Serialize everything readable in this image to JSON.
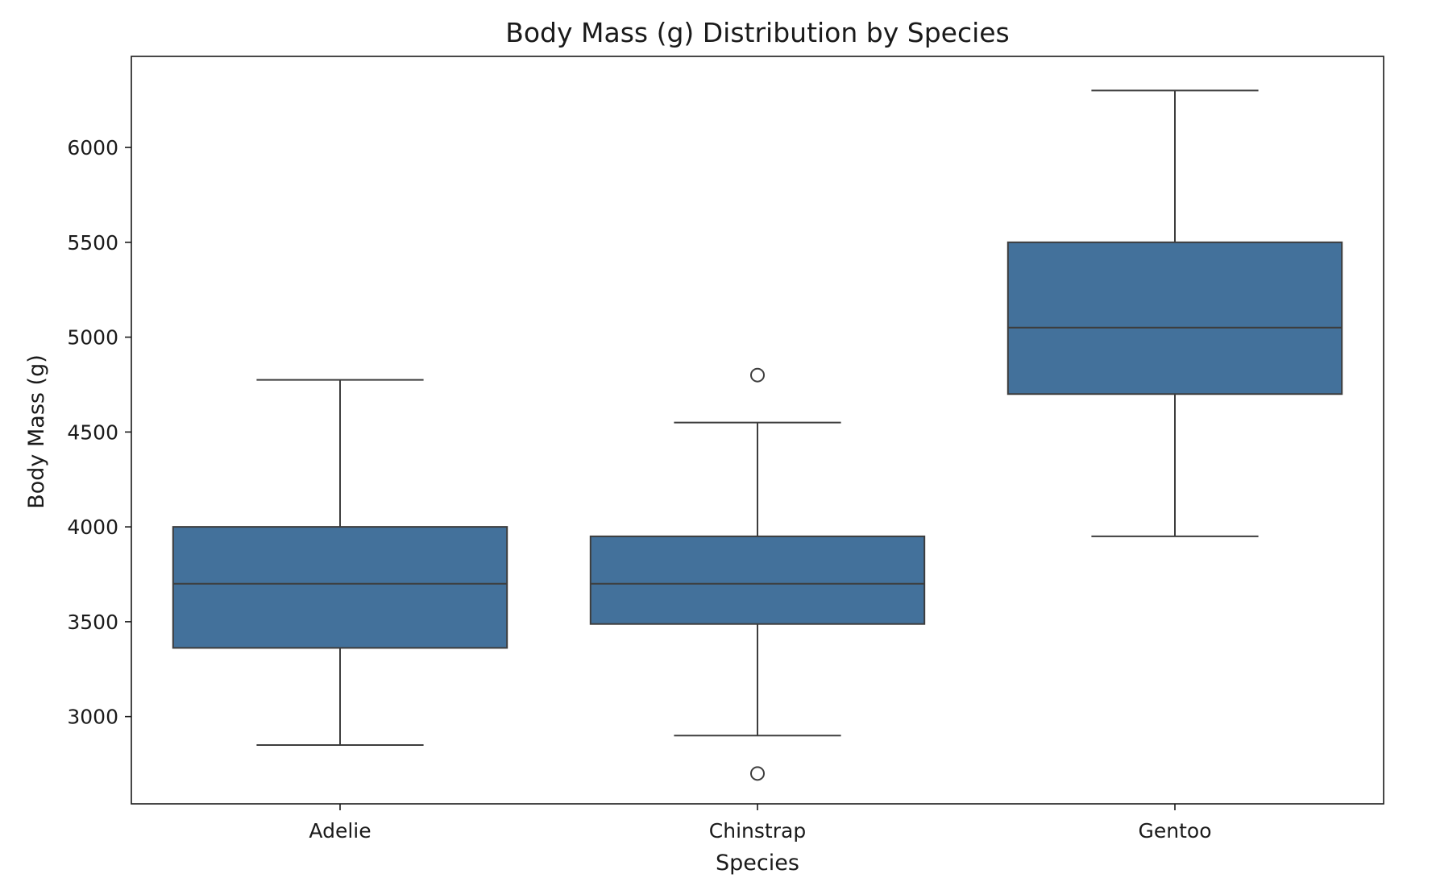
{
  "chart_data": {
    "type": "box",
    "title": "Body Mass (g) Distribution by Species",
    "xlabel": "Species",
    "ylabel": "Body Mass (g)",
    "categories": [
      "Adelie",
      "Chinstrap",
      "Gentoo"
    ],
    "boxes": [
      {
        "category": "Adelie",
        "whisker_low": 2850,
        "q1": 3362,
        "median": 3700,
        "q3": 4000,
        "whisker_high": 4775,
        "outliers": []
      },
      {
        "category": "Chinstrap",
        "whisker_low": 2900,
        "q1": 3488,
        "median": 3700,
        "q3": 3950,
        "whisker_high": 4550,
        "outliers": [
          4800,
          2700
        ]
      },
      {
        "category": "Gentoo",
        "whisker_low": 3950,
        "q1": 4700,
        "median": 5050,
        "q3": 5500,
        "whisker_high": 6300,
        "outliers": []
      }
    ],
    "yticks": [
      3000,
      3500,
      4000,
      4500,
      5000,
      5500,
      6000
    ],
    "ylim": [
      2540,
      6480
    ],
    "grid": false,
    "colors": {
      "box_fill": "#43719b",
      "line": "#3d3d3d",
      "text": "#1a1a1a",
      "outlier_fill": "#ffffff"
    }
  }
}
